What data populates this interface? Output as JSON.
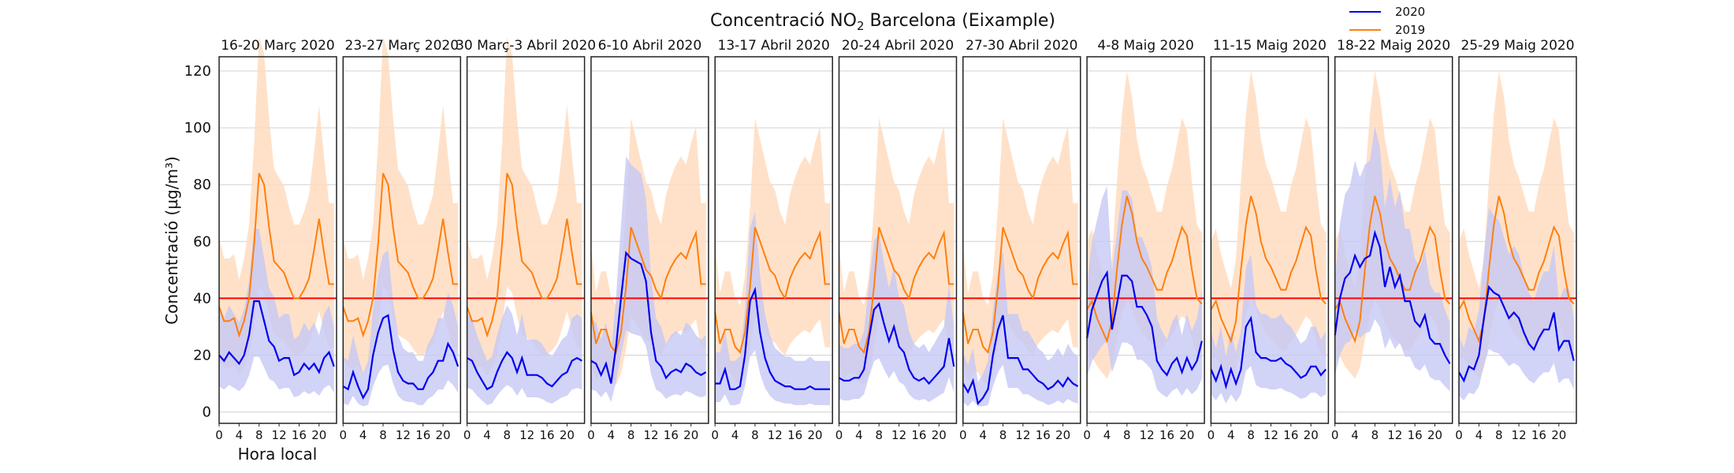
{
  "title": {
    "main": "Concentració NO",
    "sub": "2",
    "rest": " Barcelona (Eixample)"
  },
  "legend": {
    "items": [
      {
        "label": "2020",
        "color": "#0000ee"
      },
      {
        "label": "2019",
        "color": "#ff7f0e"
      }
    ],
    "placement": "top-right"
  },
  "chart_data": {
    "type": "line",
    "ylabel": "Concentració (µg/m³)",
    "xlabel": "Hora local",
    "ylim": [
      -4,
      125
    ],
    "xlim": [
      0,
      23.5
    ],
    "yticks": [
      0,
      20,
      40,
      60,
      80,
      100,
      120
    ],
    "xticks": [
      0,
      4,
      8,
      12,
      16,
      20
    ],
    "grid": "horizontal",
    "threshold": {
      "value": 40,
      "color": "#ff0000"
    },
    "colors": {
      "s2020_line": "#0000ee",
      "s2020_band": "#c5c8f5",
      "s2019_line": "#ff7f0e",
      "s2019_band": "#ffdcbf"
    },
    "panels": [
      {
        "title": "16-20 Març 2020",
        "y2020": [
          20,
          18,
          21,
          19,
          17,
          20,
          27,
          39,
          39,
          32,
          25,
          23,
          18,
          19,
          19,
          13,
          14,
          17,
          15,
          17,
          14,
          19,
          21,
          16
        ],
        "y2019": [
          37,
          32,
          32,
          33,
          27,
          32,
          40,
          59,
          84,
          80,
          65,
          53,
          51,
          49,
          44,
          40,
          40,
          43,
          47,
          57,
          68,
          56,
          45,
          45
        ]
      },
      {
        "title": "23-27 Març 2020",
        "y2020": [
          9,
          8,
          14,
          9,
          5,
          8,
          20,
          28,
          33,
          34,
          22,
          14,
          11,
          10,
          10,
          8,
          8,
          12,
          14,
          18,
          18,
          24,
          21,
          16
        ],
        "y2019": [
          37,
          32,
          32,
          33,
          27,
          32,
          40,
          59,
          84,
          80,
          65,
          53,
          51,
          49,
          44,
          40,
          40,
          43,
          47,
          57,
          68,
          56,
          45,
          45
        ]
      },
      {
        "title": "30 Març-3 Abril 2020",
        "y2020": [
          19,
          18,
          14,
          11,
          8,
          9,
          14,
          18,
          21,
          19,
          14,
          19,
          13,
          13,
          13,
          12,
          10,
          9,
          11,
          13,
          14,
          18,
          19,
          18
        ],
        "y2019": [
          37,
          32,
          32,
          33,
          27,
          32,
          40,
          59,
          84,
          80,
          65,
          53,
          51,
          49,
          44,
          40,
          40,
          43,
          47,
          57,
          68,
          56,
          45,
          45
        ]
      },
      {
        "title": "6-10 Abril 2020",
        "y2020": [
          18,
          17,
          13,
          17,
          10,
          23,
          40,
          56,
          54,
          53,
          52,
          46,
          28,
          18,
          16,
          12,
          14,
          15,
          14,
          17,
          16,
          14,
          13,
          14
        ],
        "y2019": [
          35,
          24,
          29,
          29,
          23,
          21,
          28,
          44,
          65,
          60,
          55,
          50,
          48,
          43,
          40,
          47,
          51,
          54,
          56,
          54,
          59,
          63,
          45,
          45
        ]
      },
      {
        "title": "13-17 Abril 2020",
        "y2020": [
          10,
          10,
          15,
          8,
          8,
          9,
          20,
          39,
          43,
          28,
          19,
          14,
          11,
          10,
          9,
          9,
          8,
          8,
          8,
          9,
          8,
          8,
          8,
          8
        ],
        "y2019": [
          35,
          24,
          29,
          29,
          23,
          21,
          28,
          44,
          65,
          60,
          55,
          50,
          48,
          43,
          40,
          47,
          51,
          54,
          56,
          54,
          59,
          63,
          45,
          45
        ]
      },
      {
        "title": "20-24 Abril 2020",
        "y2020": [
          12,
          11,
          11,
          12,
          12,
          15,
          26,
          36,
          38,
          31,
          25,
          30,
          23,
          21,
          15,
          12,
          11,
          12,
          10,
          12,
          14,
          16,
          26,
          16
        ],
        "y2019": [
          35,
          24,
          29,
          29,
          23,
          21,
          28,
          44,
          65,
          60,
          55,
          50,
          48,
          43,
          40,
          47,
          51,
          54,
          56,
          54,
          59,
          63,
          45,
          45
        ]
      },
      {
        "title": "27-30 Abril 2020",
        "y2020": [
          10,
          7,
          11,
          3,
          5,
          8,
          20,
          29,
          34,
          19,
          19,
          19,
          15,
          15,
          13,
          11,
          10,
          8,
          9,
          11,
          9,
          12,
          10,
          9
        ],
        "y2019": [
          35,
          24,
          29,
          29,
          23,
          21,
          28,
          44,
          65,
          60,
          55,
          50,
          48,
          43,
          40,
          47,
          51,
          54,
          56,
          54,
          59,
          63,
          45,
          45
        ]
      },
      {
        "title": "4-8 Maig 2020",
        "y2020": [
          26,
          36,
          41,
          46,
          49,
          29,
          38,
          48,
          48,
          46,
          37,
          37,
          34,
          30,
          18,
          15,
          13,
          17,
          19,
          14,
          19,
          15,
          18,
          25
        ],
        "y2019": [
          36,
          39,
          33,
          29,
          25,
          32,
          50,
          66,
          76,
          70,
          60,
          54,
          51,
          47,
          43,
          43,
          49,
          53,
          59,
          65,
          62,
          50,
          40,
          38
        ]
      },
      {
        "title": "11-15 Maig 2020",
        "y2020": [
          15,
          11,
          16,
          9,
          15,
          10,
          15,
          30,
          33,
          21,
          19,
          19,
          18,
          18,
          19,
          17,
          16,
          14,
          12,
          13,
          16,
          16,
          13,
          15
        ],
        "y2019": [
          36,
          39,
          33,
          29,
          25,
          32,
          50,
          66,
          76,
          70,
          60,
          54,
          51,
          47,
          43,
          43,
          49,
          53,
          59,
          65,
          62,
          50,
          40,
          38
        ]
      },
      {
        "title": "18-22 Maig 2020",
        "y2020": [
          27,
          40,
          47,
          49,
          55,
          51,
          54,
          55,
          63,
          58,
          44,
          51,
          44,
          48,
          39,
          39,
          32,
          30,
          34,
          26,
          24,
          24,
          20,
          17
        ],
        "y2019": [
          36,
          39,
          33,
          29,
          25,
          32,
          50,
          66,
          76,
          70,
          60,
          54,
          51,
          47,
          43,
          43,
          49,
          53,
          59,
          65,
          62,
          50,
          40,
          38
        ]
      },
      {
        "title": "25-29 Maig 2020",
        "y2020": [
          14,
          11,
          16,
          15,
          20,
          33,
          44,
          42,
          41,
          37,
          33,
          35,
          33,
          28,
          24,
          22,
          26,
          29,
          29,
          35,
          22,
          25,
          25,
          18
        ],
        "y2019": [
          36,
          39,
          33,
          29,
          25,
          32,
          50,
          66,
          76,
          70,
          60,
          54,
          51,
          47,
          43,
          43,
          49,
          53,
          59,
          65,
          62,
          50,
          40,
          38
        ]
      }
    ]
  }
}
